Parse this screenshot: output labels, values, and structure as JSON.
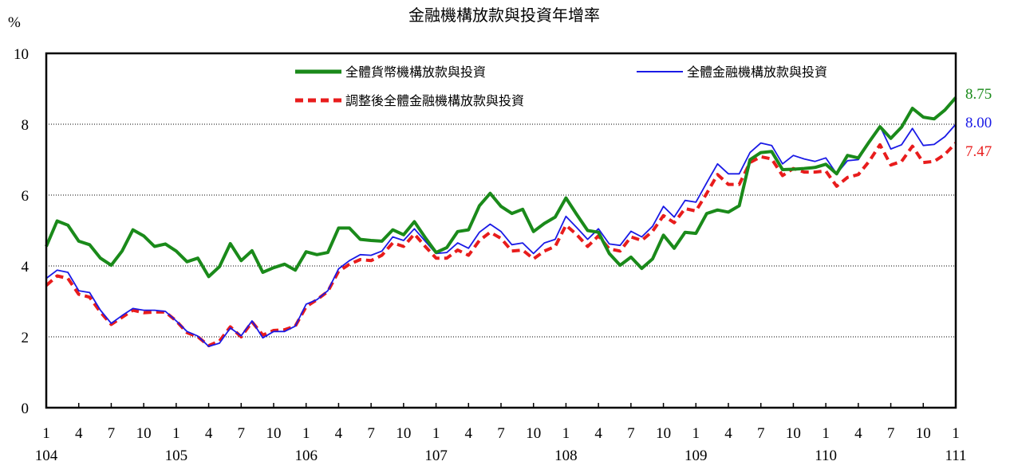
{
  "chart_data": {
    "type": "line",
    "title": "金融機構放款與投資年增率",
    "ylabel": "%",
    "ylim": [
      0,
      10
    ],
    "yticks": [
      "0",
      "2",
      "4",
      "6",
      "8",
      "10"
    ],
    "gridlines": [
      2,
      4,
      6,
      8
    ],
    "month_ticks": [
      "1",
      "4",
      "7",
      "10",
      "1",
      "4",
      "7",
      "10",
      "1",
      "4",
      "7",
      "10",
      "1",
      "4",
      "7",
      "10",
      "1",
      "4",
      "7",
      "10",
      "1",
      "4",
      "7",
      "10",
      "1",
      "4",
      "7",
      "10",
      "1"
    ],
    "year_ticks": [
      "104",
      "105",
      "106",
      "107",
      "108",
      "109",
      "110",
      "111"
    ],
    "legend_placement": "top",
    "series": [
      {
        "name": "全體貨幣機構放款與投資",
        "color": "#1a8a1a",
        "end_label": "8.75",
        "values": [
          4.55,
          5.27,
          5.15,
          4.7,
          4.6,
          4.22,
          4.02,
          4.42,
          5.02,
          4.85,
          4.55,
          4.62,
          4.42,
          4.12,
          4.22,
          3.7,
          3.98,
          4.63,
          4.15,
          4.43,
          3.82,
          3.95,
          4.05,
          3.88,
          4.4,
          4.32,
          4.38,
          5.07,
          5.07,
          4.75,
          4.72,
          4.7,
          5.02,
          4.88,
          5.25,
          4.8,
          4.38,
          4.52,
          4.97,
          5.02,
          5.7,
          6.05,
          5.68,
          5.48,
          5.6,
          4.97,
          5.2,
          5.38,
          5.92,
          5.45,
          5.0,
          4.95,
          4.35,
          4.02,
          4.25,
          3.93,
          4.2,
          4.87,
          4.5,
          4.95,
          4.92,
          5.48,
          5.58,
          5.52,
          5.7,
          7.0,
          7.2,
          7.23,
          6.72,
          6.73,
          6.75,
          6.78,
          6.87,
          6.6,
          7.12,
          7.05,
          7.5,
          7.93,
          7.6,
          7.92,
          8.45,
          8.2,
          8.15,
          8.4,
          8.75
        ]
      },
      {
        "name": "全體金融機構放款與投資",
        "color": "#1a1ae6",
        "end_label": "8.00",
        "values": [
          3.65,
          3.88,
          3.82,
          3.3,
          3.25,
          2.75,
          2.38,
          2.6,
          2.8,
          2.75,
          2.75,
          2.72,
          2.45,
          2.15,
          2.02,
          1.73,
          1.82,
          2.25,
          2.03,
          2.45,
          1.97,
          2.15,
          2.15,
          2.3,
          2.92,
          3.05,
          3.3,
          3.92,
          4.15,
          4.32,
          4.3,
          4.42,
          4.82,
          4.72,
          5.05,
          4.7,
          4.35,
          4.38,
          4.65,
          4.5,
          4.95,
          5.18,
          4.97,
          4.6,
          4.65,
          4.35,
          4.65,
          4.75,
          5.4,
          5.08,
          4.75,
          5.05,
          4.62,
          4.58,
          4.98,
          4.82,
          5.12,
          5.68,
          5.38,
          5.85,
          5.8,
          6.35,
          6.88,
          6.6,
          6.6,
          7.2,
          7.47,
          7.4,
          6.88,
          7.12,
          7.02,
          6.95,
          7.05,
          6.6,
          6.97,
          7.0,
          7.5,
          7.95,
          7.3,
          7.42,
          7.88,
          7.4,
          7.43,
          7.65,
          8.0
        ]
      },
      {
        "name": "調整後全體金融機構放款與投資",
        "color": "#e81c1c",
        "end_label": "7.47",
        "values": [
          3.45,
          3.72,
          3.65,
          3.2,
          3.12,
          2.7,
          2.35,
          2.55,
          2.75,
          2.68,
          2.7,
          2.7,
          2.45,
          2.12,
          2.0,
          1.75,
          1.88,
          2.28,
          2.0,
          2.42,
          2.05,
          2.18,
          2.2,
          2.3,
          2.85,
          3.05,
          3.28,
          3.85,
          4.05,
          4.18,
          4.15,
          4.3,
          4.65,
          4.55,
          4.9,
          4.55,
          4.22,
          4.22,
          4.45,
          4.3,
          4.72,
          4.95,
          4.78,
          4.42,
          4.45,
          4.2,
          4.42,
          4.55,
          5.15,
          4.88,
          4.55,
          4.85,
          4.48,
          4.42,
          4.82,
          4.72,
          4.98,
          5.42,
          5.22,
          5.62,
          5.55,
          6.05,
          6.58,
          6.3,
          6.3,
          6.92,
          7.08,
          7.02,
          6.55,
          6.75,
          6.65,
          6.65,
          6.68,
          6.25,
          6.5,
          6.58,
          6.95,
          7.42,
          6.85,
          6.95,
          7.38,
          6.92,
          6.95,
          7.15,
          7.47
        ]
      }
    ]
  }
}
